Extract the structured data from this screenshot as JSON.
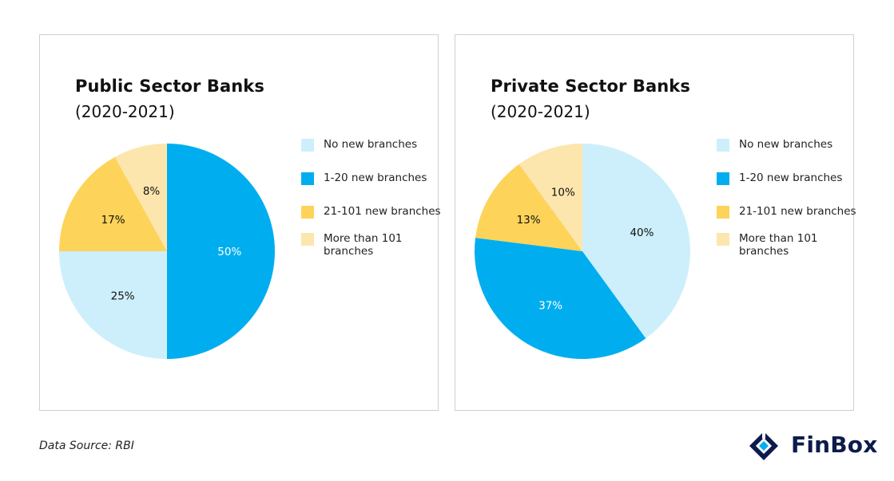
{
  "chart_data": [
    {
      "type": "pie",
      "title": "Public Sector Banks",
      "subtitle": "(2020-2021)",
      "categories": [
        "No new branches",
        "1-20 new branches",
        "21-101 new branches",
        "More than 101 branches"
      ],
      "values": [
        25,
        50,
        17,
        8
      ],
      "value_labels": [
        "25%",
        "50%",
        "17%",
        "8%"
      ],
      "colors": [
        "#cdeffb",
        "#00aeef",
        "#fdd35a",
        "#fde6ad"
      ],
      "label_colors": [
        "#111111",
        "#ffffff",
        "#111111",
        "#111111"
      ],
      "legend_position": "right"
    },
    {
      "type": "pie",
      "title": "Private Sector Banks",
      "subtitle": "(2020-2021)",
      "categories": [
        "No new branches",
        "1-20 new branches",
        "21-101 new branches",
        "More than 101 branches"
      ],
      "values": [
        40,
        37,
        13,
        10
      ],
      "value_labels": [
        "40%",
        "37%",
        "13%",
        "10%"
      ],
      "colors": [
        "#cdeffb",
        "#00aeef",
        "#fdd35a",
        "#fde6ad"
      ],
      "label_colors": [
        "#111111",
        "#ffffff",
        "#111111",
        "#111111"
      ],
      "legend_position": "right"
    }
  ],
  "footer": {
    "source_text": "Data Source: RBI"
  },
  "brand": {
    "name": "FinBox",
    "icon": "finbox-logo-icon",
    "color": "#0d1b4c"
  }
}
